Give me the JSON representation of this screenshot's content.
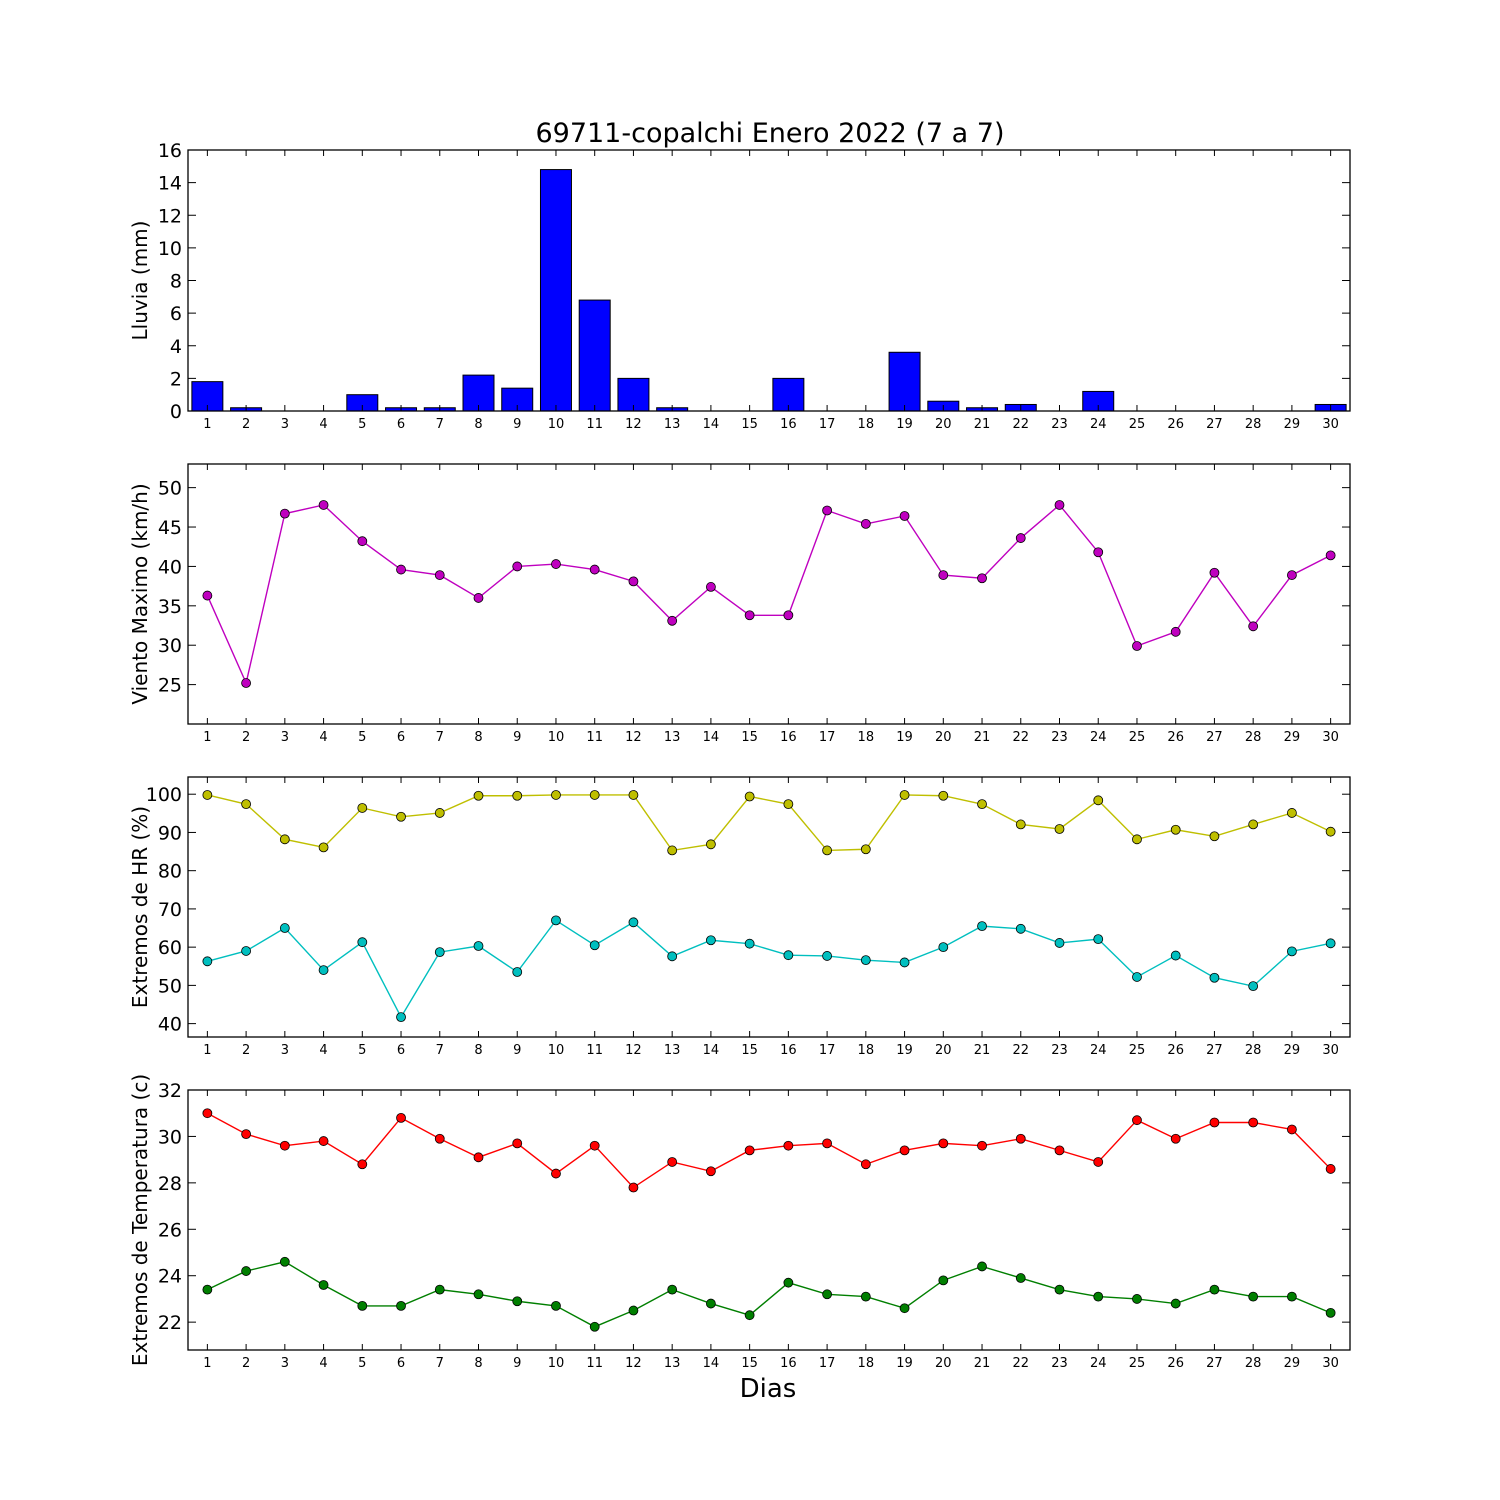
{
  "title": "69711-copalchi Enero 2022  (7 a 7)",
  "xlabel": "Dias",
  "chart_data": [
    {
      "type": "bar",
      "ylabel": "Lluvia (mm)",
      "ylim": [
        0,
        16
      ],
      "yticks": [
        0,
        2,
        4,
        6,
        8,
        10,
        12,
        14,
        16
      ],
      "x": [
        1,
        2,
        3,
        4,
        5,
        6,
        7,
        8,
        9,
        10,
        11,
        12,
        13,
        14,
        15,
        16,
        17,
        18,
        19,
        20,
        21,
        22,
        23,
        24,
        25,
        26,
        27,
        28,
        29,
        30
      ],
      "series": [
        {
          "color": "#0000ff",
          "values": [
            1.8,
            0.2,
            0,
            0,
            1.0,
            0.2,
            0.2,
            2.2,
            1.4,
            14.8,
            6.8,
            2.0,
            0.2,
            0,
            0,
            2.0,
            0,
            0,
            3.6,
            0.6,
            0.2,
            0.4,
            0,
            1.2,
            0,
            0,
            0,
            0,
            0,
            0.4
          ]
        }
      ]
    },
    {
      "type": "line",
      "ylabel": "Viento Maximo (km/h)",
      "ylim": [
        20,
        53
      ],
      "yticks": [
        25,
        30,
        35,
        40,
        45,
        50
      ],
      "x": [
        1,
        2,
        3,
        4,
        5,
        6,
        7,
        8,
        9,
        10,
        11,
        12,
        13,
        14,
        15,
        16,
        17,
        18,
        19,
        20,
        21,
        22,
        23,
        24,
        25,
        26,
        27,
        28,
        29,
        30
      ],
      "series": [
        {
          "color": "#bf00bf",
          "values": [
            36.3,
            25.2,
            46.7,
            47.8,
            43.2,
            39.6,
            38.9,
            36.0,
            40.0,
            40.3,
            39.6,
            38.1,
            33.1,
            37.4,
            33.8,
            33.8,
            47.1,
            45.4,
            46.4,
            38.9,
            38.5,
            43.6,
            47.8,
            41.8,
            29.9,
            31.7,
            39.2,
            32.4,
            38.9,
            41.4
          ]
        }
      ]
    },
    {
      "type": "line",
      "ylabel": "Extremos de HR (%)",
      "ylim": [
        36.5,
        104.5
      ],
      "yticks": [
        40,
        50,
        60,
        70,
        80,
        90,
        100
      ],
      "x": [
        1,
        2,
        3,
        4,
        5,
        6,
        7,
        8,
        9,
        10,
        11,
        12,
        13,
        14,
        15,
        16,
        17,
        18,
        19,
        20,
        21,
        22,
        23,
        24,
        25,
        26,
        27,
        28,
        29,
        30
      ],
      "series": [
        {
          "color": "#bfbf00",
          "values": [
            99.8,
            97.4,
            88.2,
            86.1,
            96.4,
            94.1,
            95.1,
            99.6,
            99.6,
            99.8,
            99.8,
            99.8,
            85.3,
            86.9,
            99.4,
            97.4,
            85.3,
            85.6,
            99.8,
            99.6,
            97.4,
            92.1,
            90.9,
            98.4,
            88.2,
            90.7,
            89.0,
            92.1,
            95.1,
            90.2
          ]
        },
        {
          "color": "#00bfbf",
          "values": [
            56.3,
            59.0,
            65.0,
            54.0,
            61.3,
            41.7,
            58.7,
            60.3,
            53.5,
            67.0,
            60.5,
            66.5,
            57.6,
            61.8,
            60.9,
            57.9,
            57.7,
            56.6,
            56.0,
            60.0,
            65.5,
            64.8,
            61.1,
            62.1,
            52.2,
            57.8,
            52.0,
            49.8,
            58.9,
            61.0
          ]
        }
      ]
    },
    {
      "type": "line",
      "ylabel": "Extremos de Temperatura (c)",
      "ylim": [
        20.8,
        32
      ],
      "yticks": [
        22,
        24,
        26,
        28,
        30,
        32
      ],
      "x": [
        1,
        2,
        3,
        4,
        5,
        6,
        7,
        8,
        9,
        10,
        11,
        12,
        13,
        14,
        15,
        16,
        17,
        18,
        19,
        20,
        21,
        22,
        23,
        24,
        25,
        26,
        27,
        28,
        29,
        30
      ],
      "series": [
        {
          "color": "#ff0000",
          "values": [
            31.0,
            30.1,
            29.6,
            29.8,
            28.8,
            30.8,
            29.9,
            29.1,
            29.7,
            28.4,
            29.6,
            27.8,
            28.9,
            28.5,
            29.4,
            29.6,
            29.7,
            28.8,
            29.4,
            29.7,
            29.6,
            29.9,
            29.4,
            28.9,
            30.7,
            29.9,
            30.6,
            30.6,
            30.3,
            28.6
          ]
        },
        {
          "color": "#007f00",
          "values": [
            23.4,
            24.2,
            24.6,
            23.6,
            22.7,
            22.7,
            23.4,
            23.2,
            22.9,
            22.7,
            21.8,
            22.5,
            23.4,
            22.8,
            22.3,
            23.7,
            23.2,
            23.1,
            22.6,
            23.8,
            24.4,
            23.9,
            23.4,
            23.1,
            23.0,
            22.8,
            23.4,
            23.1,
            23.1,
            22.4
          ]
        }
      ]
    }
  ]
}
